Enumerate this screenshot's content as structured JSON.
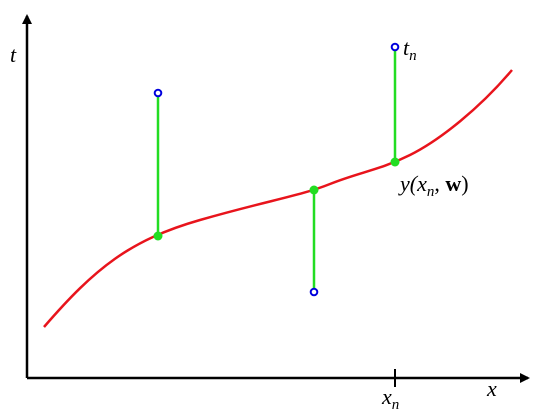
{
  "labels": {
    "y_axis": "t",
    "x_axis": "x",
    "target": {
      "base": "t",
      "sub": "n"
    },
    "prediction": {
      "pre": "y(x",
      "sub": "n",
      "mid": ", ",
      "bold": "w",
      "post": ")"
    },
    "x_tick": {
      "base": "x",
      "sub": "n"
    }
  }
}
